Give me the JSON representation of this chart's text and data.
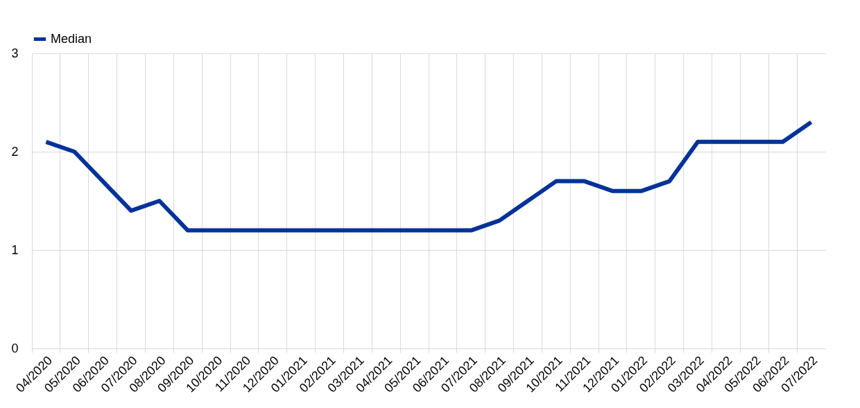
{
  "chart_data": {
    "type": "line",
    "categories": [
      "04/2020",
      "05/2020",
      "06/2020",
      "07/2020",
      "08/2020",
      "09/2020",
      "10/2020",
      "11/2020",
      "12/2020",
      "01/2021",
      "02/2021",
      "03/2021",
      "04/2021",
      "05/2021",
      "06/2021",
      "07/2021",
      "08/2021",
      "09/2021",
      "10/2021",
      "11/2021",
      "12/2021",
      "01/2022",
      "02/2022",
      "03/2022",
      "04/2022",
      "05/2022",
      "06/2022",
      "07/2022"
    ],
    "series": [
      {
        "name": "Median",
        "color": "#003299",
        "values": [
          2.1,
          2.0,
          1.7,
          1.4,
          1.5,
          1.2,
          1.2,
          1.2,
          1.2,
          1.2,
          1.2,
          1.2,
          1.2,
          1.2,
          1.2,
          1.2,
          1.3,
          1.5,
          1.7,
          1.7,
          1.6,
          1.6,
          1.7,
          2.1,
          2.1,
          2.1,
          2.1,
          2.3
        ]
      }
    ],
    "ylim": [
      0,
      3
    ],
    "yticks": [
      0,
      1,
      2,
      3
    ],
    "grid": true,
    "legend": "top left",
    "marker": "none",
    "line_style": "solid"
  }
}
